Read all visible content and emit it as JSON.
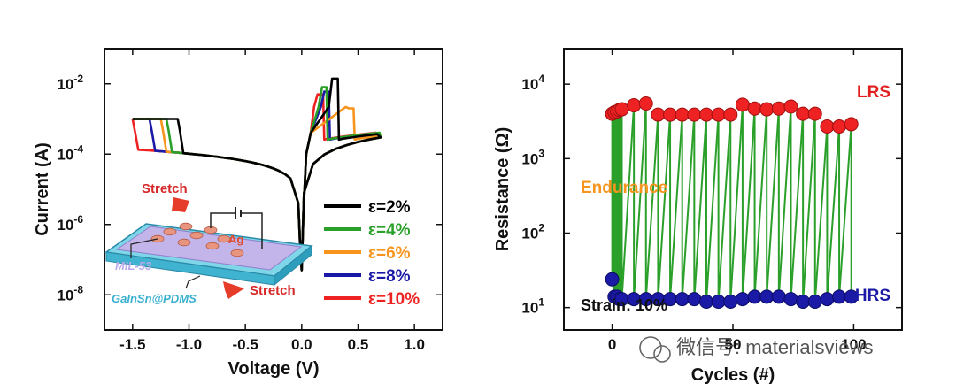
{
  "chart_data": [
    {
      "type": "line",
      "yscale": "log",
      "xlabel": "Voltage (V)",
      "ylabel": "Current (A)",
      "xlim": [
        -1.75,
        1.25
      ],
      "ylim": [
        1e-09,
        0.1
      ],
      "xticks": [
        -1.5,
        -1.0,
        -0.5,
        0.0,
        0.5,
        1.0
      ],
      "xtick_labels": [
        "-1.5",
        "-1.0",
        "-0.5",
        "0.0",
        "0.5",
        "1.0"
      ],
      "yticks": [
        {
          "mant": "10",
          "exp": "-8",
          "value": 1e-08
        },
        {
          "mant": "10",
          "exp": "-6",
          "value": 1e-06
        },
        {
          "mant": "10",
          "exp": "-4",
          "value": 0.0001
        },
        {
          "mant": "10",
          "exp": "-2",
          "value": 0.01
        }
      ],
      "compliance": 0.001,
      "series": [
        {
          "name": "ε=2%",
          "color": "#000000",
          "set_v": 0.27,
          "peak": 0.014,
          "drop_v": 0.32,
          "neg_edge": -1.1
        },
        {
          "name": "ε=4%",
          "color": "#2aa02a",
          "set_v": 0.18,
          "peak": 0.008,
          "drop_v": 0.22,
          "neg_edge": -1.2
        },
        {
          "name": "ε=6%",
          "color": "#f7941d",
          "set_v": 0.42,
          "peak": 0.002,
          "drop_v": 0.46,
          "neg_edge": -1.25
        },
        {
          "name": "ε=8%",
          "color": "#1a1aa6",
          "set_v": 0.2,
          "peak": 0.006,
          "drop_v": 0.24,
          "neg_edge": -1.35
        },
        {
          "name": "ε=10%",
          "color": "#ee2222",
          "set_v": 0.14,
          "peak": 0.005,
          "drop_v": 0.19,
          "neg_edge": -1.5
        }
      ],
      "inset": {
        "stretch_top": "Stretch",
        "stretch_bottom": "Stretch",
        "ag": "Ag",
        "mil": "MIL-53",
        "substrate": "GaInSn@PDMS"
      }
    },
    {
      "type": "scatter",
      "yscale": "log",
      "xlabel": "Cycles (#)",
      "ylabel": "Resistance (Ω)",
      "xlim": [
        -20,
        120
      ],
      "ylim": [
        5,
        30000
      ],
      "xticks": [
        0,
        50,
        100
      ],
      "xtick_labels": [
        "0",
        "50",
        "100"
      ],
      "yticks": [
        {
          "mant": "10",
          "exp": "1",
          "value": 10
        },
        {
          "mant": "10",
          "exp": "2",
          "value": 100
        },
        {
          "mant": "10",
          "exp": "3",
          "value": 1000
        },
        {
          "mant": "10",
          "exp": "4",
          "value": 10000
        }
      ],
      "lrs_label": "LRS",
      "hrs_label": "HRS",
      "endurance_label": "Endurance",
      "strain_label": "Strain: 10%",
      "lrs_color": "#ee2222",
      "hrs_color": "#1a1aa6",
      "line_color": "#2aa02a",
      "lrs": [
        {
          "x": 0,
          "y": 4000
        },
        {
          "x": 1,
          "y": 4200
        },
        {
          "x": 2,
          "y": 4300
        },
        {
          "x": 3,
          "y": 4500
        },
        {
          "x": 4,
          "y": 4600
        },
        {
          "x": 9,
          "y": 5200
        },
        {
          "x": 14,
          "y": 5500
        },
        {
          "x": 19,
          "y": 3900
        },
        {
          "x": 24,
          "y": 3900
        },
        {
          "x": 29,
          "y": 3900
        },
        {
          "x": 34,
          "y": 3900
        },
        {
          "x": 39,
          "y": 3900
        },
        {
          "x": 44,
          "y": 3900
        },
        {
          "x": 49,
          "y": 3900
        },
        {
          "x": 54,
          "y": 5300
        },
        {
          "x": 59,
          "y": 4700
        },
        {
          "x": 64,
          "y": 4600
        },
        {
          "x": 69,
          "y": 4700
        },
        {
          "x": 74,
          "y": 5000
        },
        {
          "x": 79,
          "y": 4000
        },
        {
          "x": 84,
          "y": 4000
        },
        {
          "x": 89,
          "y": 2700
        },
        {
          "x": 94,
          "y": 2700
        },
        {
          "x": 99,
          "y": 2900
        }
      ],
      "hrs": [
        {
          "x": 0,
          "y": 24
        },
        {
          "x": 1,
          "y": 14
        },
        {
          "x": 2,
          "y": 14
        },
        {
          "x": 3,
          "y": 13
        },
        {
          "x": 4,
          "y": 13
        },
        {
          "x": 9,
          "y": 13
        },
        {
          "x": 14,
          "y": 13
        },
        {
          "x": 19,
          "y": 13
        },
        {
          "x": 24,
          "y": 13
        },
        {
          "x": 29,
          "y": 13
        },
        {
          "x": 34,
          "y": 13
        },
        {
          "x": 39,
          "y": 12
        },
        {
          "x": 44,
          "y": 12
        },
        {
          "x": 49,
          "y": 12
        },
        {
          "x": 54,
          "y": 13
        },
        {
          "x": 59,
          "y": 14
        },
        {
          "x": 64,
          "y": 14
        },
        {
          "x": 69,
          "y": 14
        },
        {
          "x": 74,
          "y": 13
        },
        {
          "x": 79,
          "y": 12
        },
        {
          "x": 84,
          "y": 12
        },
        {
          "x": 89,
          "y": 13
        },
        {
          "x": 94,
          "y": 14
        },
        {
          "x": 99,
          "y": 14
        }
      ]
    }
  ],
  "watermark": {
    "text": "微信号: materialsviews"
  }
}
